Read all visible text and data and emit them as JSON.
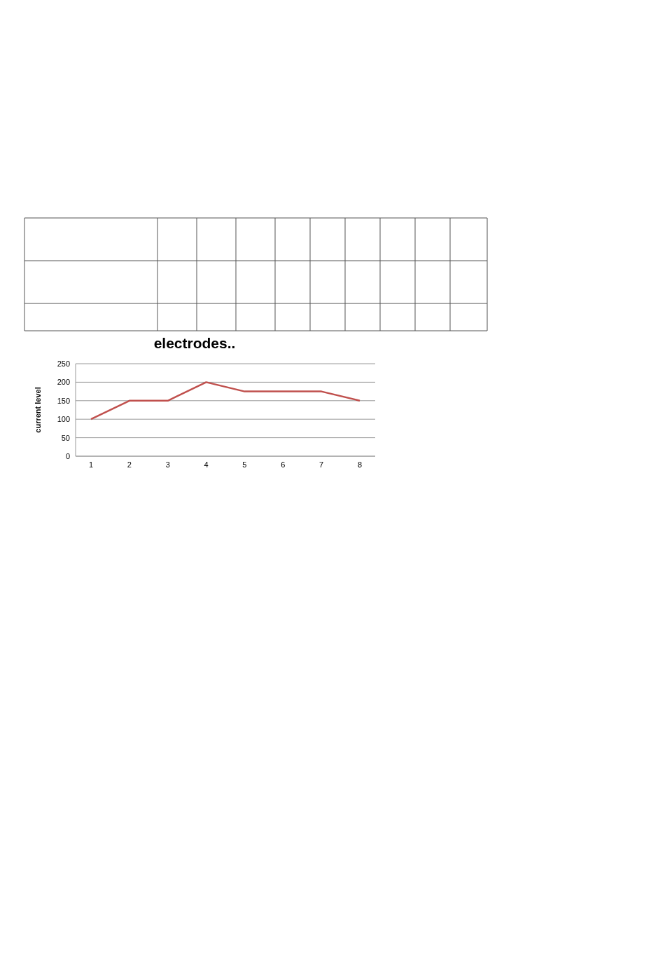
{
  "chart_data": {
    "type": "line",
    "title": "electrodes..",
    "ylabel": "current level",
    "categories": [
      "1",
      "2",
      "3",
      "4",
      "5",
      "6",
      "7",
      "8"
    ],
    "series": [
      {
        "color": "#c0504d",
        "values": [
          100,
          150,
          150,
          200,
          175,
          175,
          175,
          150
        ]
      }
    ],
    "ylim": [
      0,
      250
    ],
    "yticks": [
      0,
      50,
      100,
      150,
      200,
      250
    ],
    "grid": "y",
    "marker": "none",
    "line_style": "solid"
  }
}
